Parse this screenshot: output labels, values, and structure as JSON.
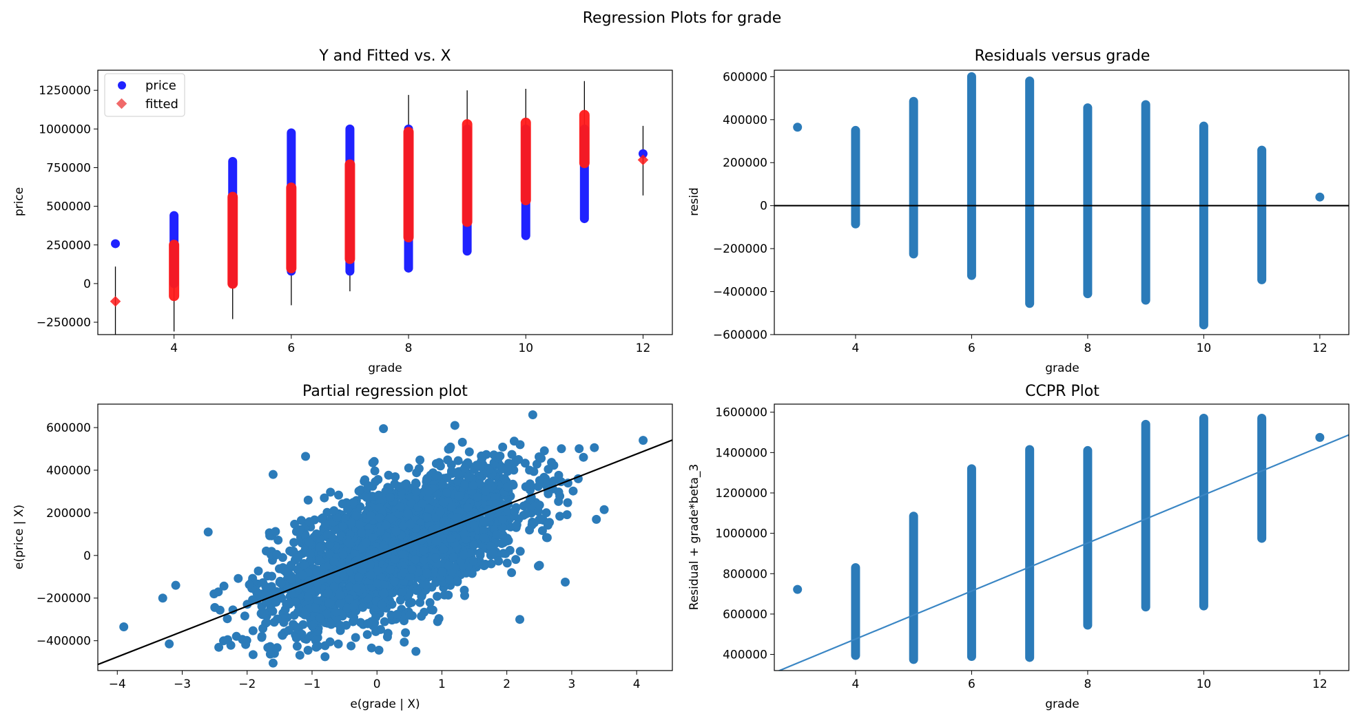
{
  "figure": {
    "suptitle": "Regression Plots for grade"
  },
  "colors": {
    "observed": "#1f22ff",
    "fitted": "#ff1a1a",
    "fitted_legend": "#f06a6a",
    "scatter": "#2b7bb9",
    "fitline_dark": "#000000",
    "ccpr_line": "#3a86c4"
  },
  "chart_data": [
    {
      "id": "y-and-fitted",
      "type": "scatter",
      "title": "Y and Fitted vs. X",
      "xlabel": "grade",
      "ylabel": "price",
      "xlim": [
        2.7,
        12.5
      ],
      "ylim": [
        -330000,
        1380000
      ],
      "xticks": [
        4,
        6,
        8,
        10,
        12
      ],
      "yticks": [
        -250000,
        0,
        250000,
        500000,
        750000,
        1000000,
        1250000
      ],
      "ytick_labels": [
        "−250000",
        "0",
        "250000",
        "500000",
        "750000",
        "1000000",
        "1250000"
      ],
      "legend": {
        "placement": "top-left",
        "entries": [
          "price",
          "fitted"
        ]
      },
      "series": [
        {
          "name": "price",
          "marker": "circle",
          "ranges": [
            {
              "x": 3,
              "ymin": 258000,
              "ymax": 258000
            },
            {
              "x": 4,
              "ymin": 0,
              "ymax": 440000
            },
            {
              "x": 5,
              "ymin": 0,
              "ymax": 790000
            },
            {
              "x": 6,
              "ymin": 80000,
              "ymax": 975000
            },
            {
              "x": 7,
              "ymin": 80000,
              "ymax": 1000000
            },
            {
              "x": 8,
              "ymin": 100000,
              "ymax": 1000000
            },
            {
              "x": 9,
              "ymin": 210000,
              "ymax": 1000000
            },
            {
              "x": 10,
              "ymin": 310000,
              "ymax": 1000000
            },
            {
              "x": 11,
              "ymin": 420000,
              "ymax": 1000000
            },
            {
              "x": 12,
              "ymin": 840000,
              "ymax": 840000
            }
          ]
        },
        {
          "name": "fitted",
          "marker": "diamond",
          "ranges": [
            {
              "x": 3,
              "ymin": -115000,
              "ymax": -115000
            },
            {
              "x": 4,
              "ymin": -80000,
              "ymax": 250000
            },
            {
              "x": 5,
              "ymin": 0,
              "ymax": 560000
            },
            {
              "x": 6,
              "ymin": 100000,
              "ymax": 620000
            },
            {
              "x": 7,
              "ymin": 160000,
              "ymax": 770000
            },
            {
              "x": 8,
              "ymin": 300000,
              "ymax": 980000
            },
            {
              "x": 9,
              "ymin": 400000,
              "ymax": 1030000
            },
            {
              "x": 10,
              "ymin": 540000,
              "ymax": 1040000
            },
            {
              "x": 11,
              "ymin": 780000,
              "ymax": 1090000
            },
            {
              "x": 12,
              "ymin": 800000,
              "ymax": 800000
            }
          ]
        }
      ],
      "intervals": [
        {
          "x": 3,
          "low": -340000,
          "high": 110000
        },
        {
          "x": 4,
          "low": -310000,
          "high": 440000
        },
        {
          "x": 5,
          "low": -230000,
          "high": 580000
        },
        {
          "x": 6,
          "low": -140000,
          "high": 760000
        },
        {
          "x": 7,
          "low": -50000,
          "high": 990000
        },
        {
          "x": 8,
          "low": 80000,
          "high": 1220000
        },
        {
          "x": 9,
          "low": 200000,
          "high": 1250000
        },
        {
          "x": 10,
          "low": 310000,
          "high": 1260000
        },
        {
          "x": 11,
          "low": 420000,
          "high": 1310000
        },
        {
          "x": 12,
          "low": 570000,
          "high": 1020000
        }
      ]
    },
    {
      "id": "residuals",
      "type": "scatter",
      "title": "Residuals versus grade",
      "xlabel": "grade",
      "ylabel": "resid",
      "xlim": [
        2.6,
        12.5
      ],
      "ylim": [
        -600000,
        630000
      ],
      "xticks": [
        4,
        6,
        8,
        10,
        12
      ],
      "yticks": [
        -600000,
        -400000,
        -200000,
        0,
        200000,
        400000,
        600000
      ],
      "ytick_labels": [
        "−600000",
        "−400000",
        "−200000",
        "0",
        "200000",
        "400000",
        "600000"
      ],
      "hline": 0,
      "ranges": [
        {
          "x": 3,
          "ymin": 365000,
          "ymax": 365000
        },
        {
          "x": 4,
          "ymin": -85000,
          "ymax": 350000
        },
        {
          "x": 5,
          "ymin": -225000,
          "ymax": 485000
        },
        {
          "x": 6,
          "ymin": -325000,
          "ymax": 600000
        },
        {
          "x": 7,
          "ymin": -455000,
          "ymax": 580000
        },
        {
          "x": 8,
          "ymin": -410000,
          "ymax": 455000
        },
        {
          "x": 9,
          "ymin": -440000,
          "ymax": 470000
        },
        {
          "x": 10,
          "ymin": -555000,
          "ymax": 370000
        },
        {
          "x": 11,
          "ymin": -345000,
          "ymax": 258000
        },
        {
          "x": 12,
          "ymin": 40000,
          "ymax": 40000
        }
      ]
    },
    {
      "id": "partial-regression",
      "type": "scatter",
      "title": "Partial regression plot",
      "xlabel": "e(grade | X)",
      "ylabel": "e(price | X)",
      "xlim": [
        -4.3,
        4.55
      ],
      "ylim": [
        -540000,
        710000
      ],
      "xticks": [
        -4,
        -3,
        -2,
        -1,
        0,
        1,
        2,
        3,
        4
      ],
      "xtick_labels": [
        "−4",
        "−3",
        "−2",
        "−1",
        "0",
        "1",
        "2",
        "3",
        "4"
      ],
      "yticks": [
        -400000,
        -200000,
        0,
        200000,
        400000,
        600000
      ],
      "ytick_labels": [
        "−400000",
        "−200000",
        "0",
        "200000",
        "400000",
        "600000"
      ],
      "fit_line": {
        "slope": 119000,
        "intercept": 0
      },
      "cloud": {
        "slope": 119000,
        "spread": 135000,
        "xmin": -2.6,
        "xmax": 3.4
      },
      "outliers": [
        {
          "x": -3.9,
          "y": -335000
        },
        {
          "x": -3.2,
          "y": -415000
        },
        {
          "x": -3.3,
          "y": -200000
        },
        {
          "x": -3.1,
          "y": -140000
        },
        {
          "x": -2.6,
          "y": 110000
        },
        {
          "x": -2.3,
          "y": -395000
        },
        {
          "x": -1.6,
          "y": 380000
        },
        {
          "x": -1.1,
          "y": 465000
        },
        {
          "x": 0.1,
          "y": 595000
        },
        {
          "x": 1.2,
          "y": 610000
        },
        {
          "x": 2.4,
          "y": 660000
        },
        {
          "x": 3.1,
          "y": 360000
        },
        {
          "x": 4.1,
          "y": 540000
        },
        {
          "x": 3.5,
          "y": 215000
        },
        {
          "x": 2.2,
          "y": -300000
        },
        {
          "x": 0.6,
          "y": -450000
        },
        {
          "x": -0.8,
          "y": -475000
        },
        {
          "x": -1.6,
          "y": -505000
        },
        {
          "x": 2.9,
          "y": -125000
        }
      ]
    },
    {
      "id": "ccpr",
      "type": "scatter",
      "title": "CCPR Plot",
      "xlabel": "grade",
      "ylabel": "Residual + grade*beta_3",
      "xlim": [
        2.6,
        12.5
      ],
      "ylim": [
        320000,
        1640000
      ],
      "xticks": [
        4,
        6,
        8,
        10,
        12
      ],
      "yticks": [
        400000,
        600000,
        800000,
        1000000,
        1200000,
        1400000,
        1600000
      ],
      "ytick_labels": [
        "400000",
        "600000",
        "800000",
        "1000000",
        "1200000",
        "1400000",
        "1600000"
      ],
      "fit_line": {
        "slope": 119000,
        "intercept": 0
      },
      "ranges": [
        {
          "x": 3,
          "ymin": 722000,
          "ymax": 722000
        },
        {
          "x": 4,
          "ymin": 395000,
          "ymax": 830000
        },
        {
          "x": 5,
          "ymin": 375000,
          "ymax": 1085000
        },
        {
          "x": 6,
          "ymin": 390000,
          "ymax": 1320000
        },
        {
          "x": 7,
          "ymin": 385000,
          "ymax": 1415000
        },
        {
          "x": 8,
          "ymin": 545000,
          "ymax": 1410000
        },
        {
          "x": 9,
          "ymin": 635000,
          "ymax": 1540000
        },
        {
          "x": 10,
          "ymin": 640000,
          "ymax": 1570000
        },
        {
          "x": 11,
          "ymin": 975000,
          "ymax": 1570000
        },
        {
          "x": 12,
          "ymin": 1475000,
          "ymax": 1475000
        }
      ]
    }
  ]
}
